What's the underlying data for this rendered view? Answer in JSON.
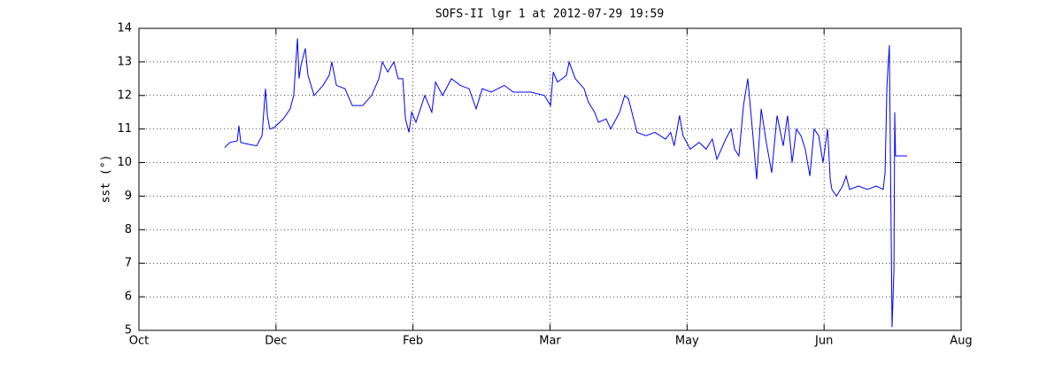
{
  "chart_data": {
    "type": "line",
    "title": "SOFS-II lgr 1 at 2012-07-29 19:59",
    "ylabel": "sst (°)",
    "color": "#0000ff",
    "grid": true,
    "xlim": [
      0,
      306
    ],
    "xticks": [
      {
        "value": 0,
        "label": "Oct"
      },
      {
        "value": 51,
        "label": "Dec"
      },
      {
        "value": 102,
        "label": "Feb"
      },
      {
        "value": 153,
        "label": "Mar"
      },
      {
        "value": 204,
        "label": "May"
      },
      {
        "value": 255,
        "label": "Jun"
      },
      {
        "value": 306,
        "label": "Aug"
      }
    ],
    "ylim": [
      5,
      14
    ],
    "yticks": [
      5,
      6,
      7,
      8,
      9,
      10,
      11,
      12,
      13,
      14
    ],
    "x": [
      31.9,
      33.9,
      36.6,
      37.2,
      37.9,
      40.5,
      43.8,
      45.8,
      47.1,
      47.8,
      48.7,
      50.4,
      53.7,
      56.3,
      57.6,
      59.0,
      59.6,
      60.3,
      61.9,
      62.9,
      65.2,
      68.5,
      70.8,
      71.8,
      73.5,
      76.7,
      79.4,
      83.3,
      86.6,
      89.3,
      90.6,
      92.6,
      94.9,
      96.5,
      98.2,
      99.2,
      100.5,
      101.5,
      103.1,
      106.4,
      109.0,
      110.4,
      113.0,
      116.3,
      119.6,
      122.9,
      125.5,
      127.8,
      131.1,
      136.0,
      139.3,
      145.9,
      150.9,
      153.2,
      154.2,
      155.8,
      159.1,
      160.1,
      162.4,
      165.7,
      167.3,
      169.6,
      171.0,
      173.9,
      175.6,
      178.9,
      180.8,
      182.2,
      184.1,
      185.4,
      188.7,
      192.0,
      196.0,
      197.9,
      199.2,
      201.2,
      202.5,
      205.2,
      208.5,
      211.1,
      213.4,
      215.1,
      218.4,
      220.4,
      221.7,
      223.3,
      225.0,
      226.6,
      228.3,
      229.9,
      231.6,
      233.5,
      235.5,
      237.5,
      239.8,
      241.4,
      243.1,
      244.7,
      246.4,
      248.0,
      249.7,
      251.3,
      253.0,
      254.6,
      256.3,
      257.3,
      257.9,
      259.6,
      261.9,
      263.2,
      264.5,
      267.8,
      271.1,
      274.4,
      277.0,
      277.7,
      278.4,
      279.3,
      280.3,
      281.0,
      281.3,
      281.6,
      285.9
    ],
    "values": [
      10.45,
      10.6,
      10.65,
      11.1,
      10.6,
      10.55,
      10.5,
      10.8,
      12.2,
      11.4,
      11.0,
      11.05,
      11.3,
      11.6,
      12.0,
      13.7,
      12.5,
      12.9,
      13.4,
      12.6,
      12.0,
      12.3,
      12.6,
      13.0,
      12.3,
      12.2,
      11.7,
      11.7,
      12.0,
      12.5,
      13.0,
      12.7,
      13.0,
      12.5,
      12.5,
      11.3,
      10.9,
      11.5,
      11.2,
      12.0,
      11.5,
      12.4,
      12.0,
      12.5,
      12.3,
      12.2,
      11.6,
      12.2,
      12.1,
      12.3,
      12.1,
      12.1,
      12.0,
      11.7,
      12.7,
      12.4,
      12.6,
      13.0,
      12.5,
      12.2,
      11.8,
      11.5,
      11.2,
      11.3,
      11.0,
      11.5,
      12.0,
      11.9,
      11.3,
      10.9,
      10.8,
      10.9,
      10.7,
      10.9,
      10.5,
      11.4,
      10.8,
      10.4,
      10.6,
      10.4,
      10.7,
      10.1,
      10.7,
      11.0,
      10.4,
      10.2,
      11.7,
      12.5,
      11.0,
      9.5,
      11.6,
      10.6,
      9.7,
      11.4,
      10.5,
      11.4,
      10.0,
      11.0,
      10.8,
      10.4,
      9.6,
      11.0,
      10.8,
      10.0,
      11.0,
      9.5,
      9.2,
      9.0,
      9.3,
      9.6,
      9.2,
      9.3,
      9.2,
      9.3,
      9.2,
      9.7,
      12.3,
      13.5,
      5.1,
      6.8,
      11.5,
      10.2,
      10.2
    ]
  }
}
